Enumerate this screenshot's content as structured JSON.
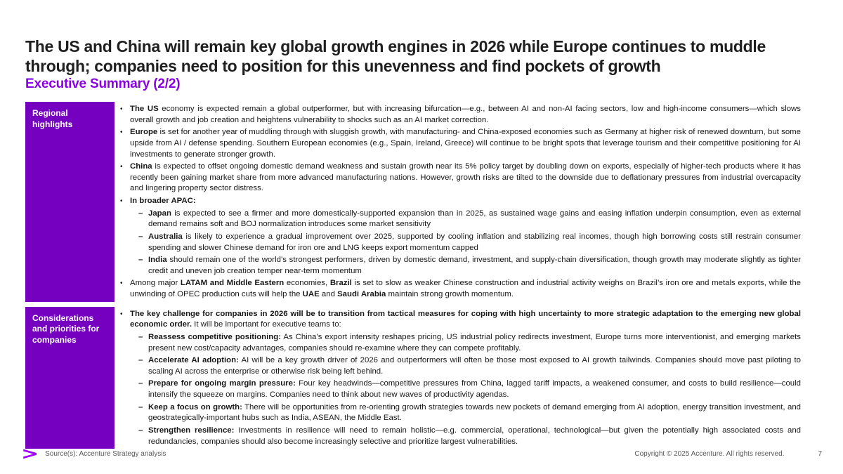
{
  "colors": {
    "box_purple": "#7500C0",
    "heading_purple": "#8A00E5",
    "logo_purple": "#A100FF",
    "title_text": "#1f1f1f",
    "body_text": "#191919",
    "footer_text": "#595959"
  },
  "header": {
    "title": "The US and China will remain key global growth engines in 2026 while Europe continues to muddle through; companies need to position for this unevenness and find pockets of growth",
    "subtitle": "Executive Summary (2/2)"
  },
  "markers": {
    "level1": "•",
    "level2": "–"
  },
  "sections": [
    {
      "label": "Regional highlights",
      "min_height": 281,
      "bullets": [
        {
          "level": 1,
          "segments": [
            {
              "text": "The US",
              "bold": true
            },
            {
              "text": " economy is expected remain a global outperformer, but with increasing bifurcation—e.g., between AI and non-AI facing sectors, low and high-income consumers—which slows overall growth and job creation and heightens vulnerability to shocks such as an AI market correction.",
              "bold": false
            }
          ]
        },
        {
          "level": 1,
          "segments": [
            {
              "text": "Europe",
              "bold": true
            },
            {
              "text": " is set for another year of muddling through with sluggish growth, with manufacturing- and China-exposed economies such as Germany at higher risk of renewed downturn, but some upside from AI / defense spending. Southern European economies (e.g., Spain, Ireland, Greece) will continue to be bright spots that leverage tourism and their competitive positioning for AI investments to generate stronger growth.",
              "bold": false
            }
          ]
        },
        {
          "level": 1,
          "segments": [
            {
              "text": "China",
              "bold": true
            },
            {
              "text": " is expected to offset ongoing domestic demand weakness and sustain growth near its 5% policy target by doubling down on exports, especially of higher-tech products where it has recently been gaining market share from more advanced manufacturing nations. However, growth risks are tilted to the downside due to deflationary pressures from industrial overcapacity and lingering property sector distress.",
              "bold": false
            }
          ]
        },
        {
          "level": 1,
          "segments": [
            {
              "text": "In broader APAC:",
              "bold": true
            }
          ]
        },
        {
          "level": 2,
          "segments": [
            {
              "text": "Japan",
              "bold": true
            },
            {
              "text": " is expected to see a firmer and more domestically-supported expansion than in 2025, as sustained wage gains and easing inflation underpin consumption, even as external demand remains soft and BOJ normalization introduces some market sensitivity",
              "bold": false
            }
          ]
        },
        {
          "level": 2,
          "segments": [
            {
              "text": "Australia",
              "bold": true
            },
            {
              "text": " is likely to experience a gradual improvement over 2025, supported by cooling inflation and stabilizing real incomes, though high borrowing costs still restrain consumer spending and slower Chinese demand for iron ore and LNG keeps export momentum capped",
              "bold": false
            }
          ]
        },
        {
          "level": 2,
          "segments": [
            {
              "text": "India",
              "bold": true
            },
            {
              "text": " should remain one of the world’s strongest performers, driven by domestic demand, investment, and supply-chain diversification, though growth may moderate slightly as tighter credit and uneven job creation temper near-term momentum",
              "bold": false
            }
          ]
        },
        {
          "level": 1,
          "segments": [
            {
              "text": "Among major ",
              "bold": false
            },
            {
              "text": "LATAM and Middle Eastern",
              "bold": true
            },
            {
              "text": " economies, ",
              "bold": false
            },
            {
              "text": "Brazil",
              "bold": true
            },
            {
              "text": " is set to slow as weaker Chinese construction and industrial activity weighs on Brazil’s iron ore and metals exports, while the unwinding of OPEC production cuts will help the ",
              "bold": false
            },
            {
              "text": "UAE",
              "bold": true
            },
            {
              "text": " and ",
              "bold": false
            },
            {
              "text": "Saudi Arabia",
              "bold": true
            },
            {
              "text": " maintain strong growth momentum.",
              "bold": false
            }
          ]
        }
      ]
    },
    {
      "label": "Considerations and priorities for companies",
      "min_height": 199,
      "bullets": [
        {
          "level": 1,
          "segments": [
            {
              "text": "The key challenge for companies in 2026 will be to transition from tactical measures for coping with high uncertainty to more strategic adaptation to the emerging new global economic order.",
              "bold": true
            },
            {
              "text": " It will be important for executive teams to:",
              "bold": false
            }
          ]
        },
        {
          "level": 2,
          "segments": [
            {
              "text": "Reassess competitive positioning:",
              "bold": true
            },
            {
              "text": " As China’s export intensity reshapes pricing, US industrial policy redirects investment, Europe turns more interventionist, and emerging markets present new cost/capacity advantages, companies should re-examine where they can compete profitably.",
              "bold": false
            }
          ]
        },
        {
          "level": 2,
          "segments": [
            {
              "text": "Accelerate AI adoption:",
              "bold": true
            },
            {
              "text": " AI will be a key growth driver of 2026 and outperformers will often be those most exposed to AI growth tailwinds. Companies should move past piloting to scaling AI across the enterprise or otherwise risk being left behind.",
              "bold": false
            }
          ]
        },
        {
          "level": 2,
          "segments": [
            {
              "text": "Prepare for ongoing margin pressure:",
              "bold": true
            },
            {
              "text": " Four key headwinds—competitive pressures from China, lagged tariff impacts, a weakened consumer, and costs to build resilience—could intensify the squeeze on margins. Companies need to think about new waves of productivity agendas.",
              "bold": false
            }
          ]
        },
        {
          "level": 2,
          "segments": [
            {
              "text": "Keep a focus on growth:",
              "bold": true
            },
            {
              "text": " There will be opportunities from re-orienting growth strategies towards new pockets of demand emerging from AI adoption, energy transition investment, and geostrategically-important hubs such as India, ASEAN, the Middle East.",
              "bold": false
            }
          ]
        },
        {
          "level": 2,
          "segments": [
            {
              "text": "Strengthen resilience:",
              "bold": true
            },
            {
              "text": " Investments in resilience will need to remain holistic—e.g. commercial, operational, technological—but given the potentially high associated costs and redundancies, companies should also become increasingly selective and prioritize largest vulnerabilities.",
              "bold": false
            }
          ]
        }
      ]
    }
  ],
  "footer": {
    "logo_glyph": ">",
    "logo_icon": "accenture-greater-than-icon",
    "source": "Source(s): Accenture Strategy analysis",
    "copyright": "Copyright © 2025 Accenture. All rights reserved.",
    "page_number": "7"
  }
}
